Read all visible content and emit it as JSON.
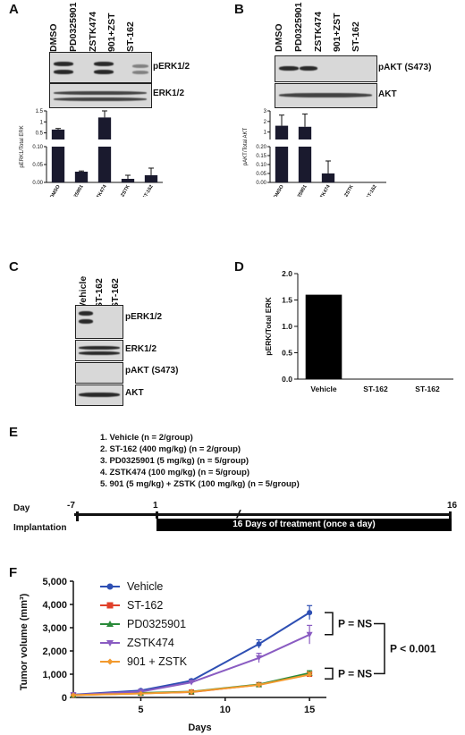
{
  "panels": {
    "A": {
      "label": "A",
      "lanes": [
        "DMSO",
        "PD0325901",
        "ZSTK474",
        "901+ZST",
        "ST-162"
      ],
      "blots": [
        "pERK1/2",
        "ERK1/2"
      ],
      "ylabel": "pERK1/Total ERK",
      "xticks": [
        "DMSO",
        "PD0325901",
        "ZSTK474",
        "901+ZSTK",
        "ST-162"
      ],
      "ytick_upper": [
        "1.5",
        "1",
        "0.5"
      ],
      "ytick_lower": [
        "0.10",
        "0.05",
        "0.00"
      ]
    },
    "B": {
      "label": "B",
      "lanes": [
        "DMSO",
        "PD0325901",
        "ZSTK474",
        "901+ZST",
        "ST-162"
      ],
      "blots": [
        "pAKT (S473)",
        "AKT"
      ],
      "ylabel": "pAKT/Total AKT",
      "xticks": [
        "DMSO",
        "PD0325901",
        "ZSTK474",
        "901+ZSTK",
        "ST-162"
      ],
      "ytick_upper": [
        "3",
        "2",
        "1"
      ],
      "ytick_lower": [
        "0.20",
        "0.15",
        "0.10",
        "0.05",
        "0.00"
      ]
    },
    "C": {
      "label": "C",
      "lanes": [
        "Vehicle",
        "ST-162",
        "ST-162"
      ],
      "blots": [
        "pERK1/2",
        "ERK1/2",
        "pAKT (S473)",
        "AKT"
      ]
    },
    "D": {
      "label": "D",
      "ylabel": "pERK/Total ERK",
      "xticks": [
        "Vehicle",
        "ST-162",
        "ST-162"
      ],
      "yticks": [
        "0.0",
        "0.5",
        "1.0",
        "1.5",
        "2.0"
      ]
    },
    "E": {
      "label": "E",
      "conditions": [
        "1.   Vehicle (n = 2/group)",
        "2.   ST-162 (400 mg/kg) (n = 2/group)",
        "3.   PD0325901 (5 mg/kg) (n = 5/group)",
        "4.   ZSTK474 (100 mg/kg) (n = 5/group)",
        "5.   901 (5 mg/kg) + ZSTK (100 mg/kg) (n = 5/group)"
      ],
      "day_label": "Day",
      "day_start": "-7",
      "day_one": "1",
      "day_end": "16",
      "implantation": "Implantation",
      "treatment": "16 Days of treatment (once a day)"
    },
    "F": {
      "label": "F",
      "ylabel": "Tumor volume (mm³)",
      "xlabel": "Days",
      "yticks": [
        "0",
        "1,000",
        "2,000",
        "3,000",
        "4,000",
        "5,000"
      ],
      "xticks": [
        "5",
        "10",
        "15"
      ],
      "legend": [
        "Vehicle",
        "ST-162",
        "PD0325901",
        "ZSTK474",
        "901 + ZSTK"
      ],
      "annot_ns1": "P = NS",
      "annot_ns2": "P = NS",
      "annot_sig": "P < 0.001"
    }
  },
  "chart_data": [
    {
      "type": "bar",
      "panel": "A",
      "categories": [
        "DMSO",
        "PD0325901",
        "ZSTK474",
        "901+ZSTK",
        "ST-162"
      ],
      "values": [
        0.65,
        0.03,
        1.2,
        0.01,
        0.02
      ],
      "errors": [
        0.05,
        0.002,
        0.35,
        0.01,
        0.02
      ],
      "ylabel": "pERK1/Total ERK",
      "color": "#1a1a2e"
    },
    {
      "type": "bar",
      "panel": "B",
      "categories": [
        "DMSO",
        "PD0325901",
        "ZSTK474",
        "901+ZSTK",
        "ST-162"
      ],
      "values": [
        1.6,
        1.5,
        0.05,
        0.0,
        0.0
      ],
      "errors": [
        1.0,
        1.2,
        0.07,
        0.0,
        0.0
      ],
      "ylabel": "pAKT/Total AKT",
      "color": "#1a1a2e"
    },
    {
      "type": "bar",
      "panel": "D",
      "categories": [
        "Vehicle",
        "ST-162",
        "ST-162"
      ],
      "values": [
        1.6,
        0.0,
        0.0
      ],
      "ylabel": "pERK/Total ERK",
      "ylim": [
        0,
        2.0
      ],
      "color": "#000000"
    },
    {
      "type": "line",
      "panel": "F",
      "x": [
        1,
        5,
        8,
        12,
        15
      ],
      "xlabel": "Days",
      "ylabel": "Tumor volume (mm³)",
      "ylim": [
        0,
        5000
      ],
      "xlim": [
        1,
        16
      ],
      "series": [
        {
          "name": "Vehicle",
          "color": "#2e4fb3",
          "values": [
            120,
            300,
            720,
            2300,
            3650
          ],
          "errors": [
            20,
            40,
            60,
            180,
            300
          ]
        },
        {
          "name": "ST-162",
          "color": "#e0402a",
          "values": [
            100,
            180,
            230,
            550,
            1000
          ],
          "errors": [
            15,
            20,
            30,
            50,
            100
          ]
        },
        {
          "name": "PD0325901",
          "color": "#2a8a3a",
          "values": [
            110,
            190,
            250,
            560,
            1050
          ],
          "errors": [
            15,
            20,
            30,
            50,
            100
          ]
        },
        {
          "name": "ZSTK474",
          "color": "#8a5cc2",
          "values": [
            110,
            250,
            650,
            1700,
            2700
          ],
          "errors": [
            20,
            30,
            60,
            200,
            400
          ]
        },
        {
          "name": "901 + ZSTK",
          "color": "#f29a2e",
          "values": [
            100,
            170,
            240,
            540,
            980
          ],
          "errors": [
            15,
            20,
            30,
            50,
            100
          ]
        }
      ]
    }
  ]
}
